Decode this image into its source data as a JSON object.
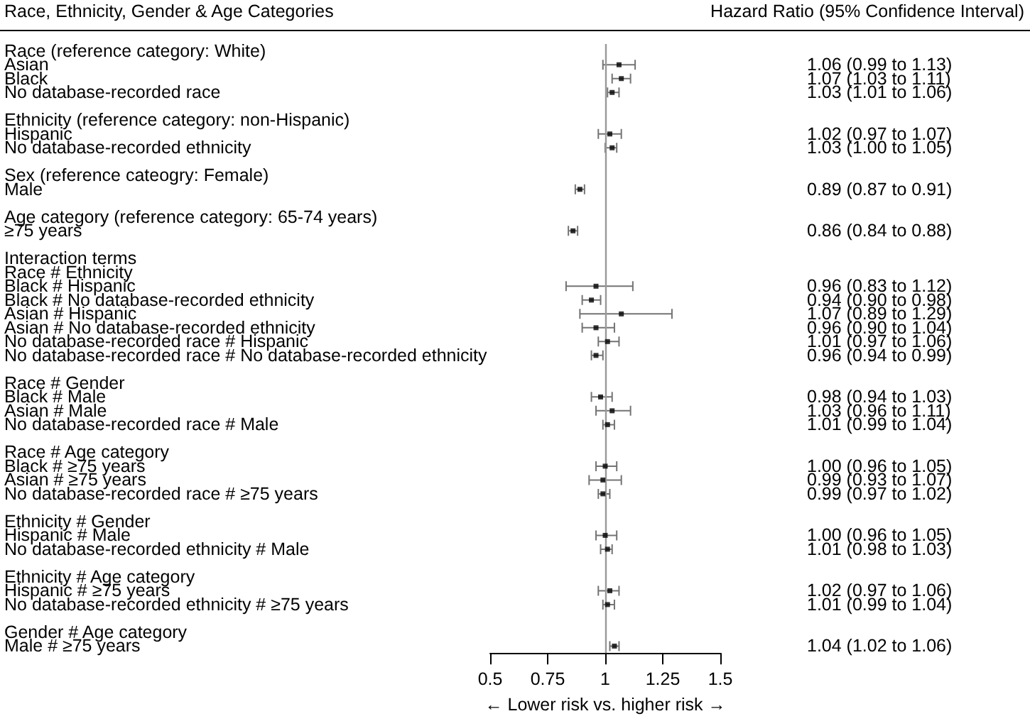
{
  "chart_data": {
    "type": "scatter",
    "orientation": "horizontal",
    "title": "Race, Ethnicity, Gender & Age Categories",
    "xlabel": "← Lower risk vs. higher risk →",
    "annotations": [
      "Hazard Ratio (95% Confidence Interval)"
    ],
    "categories": [
      "Race (reference category: White)",
      "Asian",
      "Black",
      "No database-recorded race",
      null,
      "Ethnicity (reference category: non-Hispanic)",
      "Hispanic",
      "No database-recorded ethnicity",
      null,
      "Sex (reference cateogry: Female)",
      "Male",
      null,
      "Age category (reference category: 65-74 years)",
      "≥75 years",
      null,
      "Interaction terms",
      "Race # Ethnicity",
      "Black # Hispanic",
      "Black # No database-recorded ethnicity",
      "Asian # Hispanic",
      "Asian # No database-recorded ethnicity",
      "No database-recorded race # Hispanic",
      "No database-recorded race # No database-recorded ethnicity",
      null,
      "Race # Gender",
      "Black # Male",
      "Asian # Male",
      "No database-recorded race # Male",
      null,
      "Race # Age category",
      "Black # ≥75 years",
      "Asian # ≥75 years",
      "No database-recorded race # ≥75 years",
      null,
      "Ethnicity # Gender",
      "Hispanic # Male",
      "No database-recorded ethnicity # Male",
      null,
      "Ethnicity # Age category",
      "Hispanic # ≥75 years",
      "No database-recorded ethnicity # ≥75 years",
      null,
      "Gender # Age category",
      "Male # ≥75 years"
    ],
    "values": [
      null,
      1.06,
      1.07,
      1.03,
      null,
      null,
      1.02,
      1.03,
      null,
      null,
      0.89,
      null,
      null,
      0.86,
      null,
      null,
      null,
      0.96,
      0.94,
      1.07,
      0.96,
      1.01,
      0.96,
      null,
      null,
      0.98,
      1.03,
      1.01,
      null,
      null,
      1.0,
      0.99,
      0.99,
      null,
      null,
      1.0,
      1.01,
      null,
      null,
      1.02,
      1.01,
      null,
      null,
      1.04
    ],
    "errors": [
      null,
      [
        0.99,
        1.13
      ],
      [
        1.03,
        1.11
      ],
      [
        1.01,
        1.06
      ],
      null,
      null,
      [
        0.97,
        1.07
      ],
      [
        1.0,
        1.05
      ],
      null,
      null,
      [
        0.87,
        0.91
      ],
      null,
      null,
      [
        0.84,
        0.88
      ],
      null,
      null,
      null,
      [
        0.83,
        1.12
      ],
      [
        0.9,
        0.98
      ],
      [
        0.89,
        1.29
      ],
      [
        0.9,
        1.04
      ],
      [
        0.97,
        1.06
      ],
      [
        0.94,
        0.99
      ],
      null,
      null,
      [
        0.94,
        1.03
      ],
      [
        0.96,
        1.11
      ],
      [
        0.99,
        1.04
      ],
      null,
      null,
      [
        0.96,
        1.05
      ],
      [
        0.93,
        1.07
      ],
      [
        0.97,
        1.02
      ],
      null,
      null,
      [
        0.96,
        1.05
      ],
      [
        0.98,
        1.03
      ],
      null,
      null,
      [
        0.97,
        1.06
      ],
      [
        0.99,
        1.04
      ],
      null,
      null,
      [
        1.02,
        1.06
      ]
    ],
    "value_labels": [
      null,
      "1.06 (0.99 to 1.13)",
      "1.07 (1.03 to 1.11)",
      "1.03 (1.01 to 1.06)",
      null,
      null,
      "1.02 (0.97 to 1.07)",
      "1.03 (1.00 to 1.05)",
      null,
      null,
      "0.89 (0.87 to 0.91)",
      null,
      null,
      "0.86 (0.84 to 0.88)",
      null,
      null,
      null,
      "0.96 (0.83 to 1.12)",
      "0.94 (0.90 to 0.98)",
      "1.07 (0.89 to 1.29)",
      "0.96 (0.90 to 1.04)",
      "1.01 (0.97 to 1.06)",
      "0.96 (0.94 to 0.99)",
      null,
      null,
      "0.98 (0.94 to 1.03)",
      "1.03 (0.96 to 1.11)",
      "1.01 (0.99 to 1.04)",
      null,
      null,
      "1.00 (0.96 to 1.05)",
      "0.99 (0.93 to 1.07)",
      "0.99 (0.97 to 1.02)",
      null,
      null,
      "1.00 (0.96 to 1.05)",
      "1.01 (0.98 to 1.03)",
      null,
      null,
      "1.02 (0.97 to 1.06)",
      "1.01 (0.99 to 1.04)",
      null,
      null,
      "1.04 (1.02 to 1.06)"
    ],
    "color": "#000000",
    "marker": "square",
    "xlim": [
      0.5,
      1.5
    ],
    "xticks": [
      0.5,
      0.75,
      1,
      1.25,
      1.5
    ],
    "ref_lines": [
      {
        "axis": "x",
        "value": 1,
        "color": "#999999"
      }
    ]
  }
}
